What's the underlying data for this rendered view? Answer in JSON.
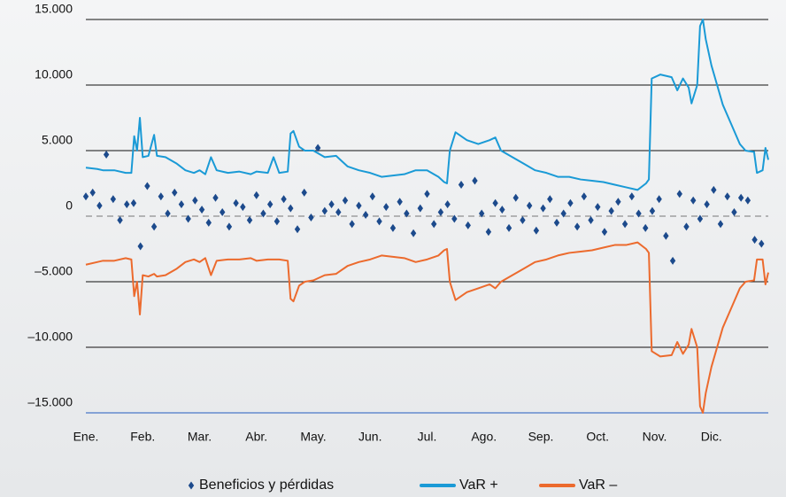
{
  "chart_data": {
    "type": "scatter-line",
    "xlim": [
      0,
      12
    ],
    "xticks": [
      {
        "value": 0,
        "label": "Ene."
      },
      {
        "value": 1,
        "label": "Feb."
      },
      {
        "value": 2,
        "label": "Mar."
      },
      {
        "value": 3,
        "label": "Abr."
      },
      {
        "value": 4,
        "label": "May."
      },
      {
        "value": 5,
        "label": "Jun."
      },
      {
        "value": 6,
        "label": "Jul."
      },
      {
        "value": 7,
        "label": "Ago."
      },
      {
        "value": 8,
        "label": "Sep."
      },
      {
        "value": 9,
        "label": "Oct."
      },
      {
        "value": 10,
        "label": "Nov."
      },
      {
        "value": 11,
        "label": "Dic."
      }
    ],
    "ylim": [
      -15000,
      15000
    ],
    "yticks": [
      {
        "value": 15000,
        "label": "15.000"
      },
      {
        "value": 10000,
        "label": "10.000"
      },
      {
        "value": 5000,
        "label": "5.000"
      },
      0,
      {
        "value": -5000,
        "label": "–5.000"
      },
      {
        "value": -10000,
        "label": "–10.000"
      },
      {
        "value": -15000,
        "label": "–15.000"
      }
    ],
    "grid": true,
    "legend": "bottom",
    "series": [
      {
        "name": "Beneficios y pérdidas",
        "type": "scatter",
        "color": "#1c4a8c",
        "x": [
          0,
          0.12,
          0.24,
          0.36,
          0.48,
          0.6,
          0.72,
          0.84,
          0.96,
          1.08,
          1.2,
          1.32,
          1.44,
          1.56,
          1.68,
          1.8,
          1.92,
          2.04,
          2.16,
          2.28,
          2.4,
          2.52,
          2.64,
          2.76,
          2.88,
          3,
          3.12,
          3.24,
          3.36,
          3.48,
          3.6,
          3.72,
          3.84,
          3.96,
          4.08,
          4.2,
          4.32,
          4.44,
          4.56,
          4.68,
          4.8,
          4.92,
          5.04,
          5.16,
          5.28,
          5.4,
          5.52,
          5.64,
          5.76,
          5.88,
          6,
          6.12,
          6.24,
          6.36,
          6.48,
          6.6,
          6.72,
          6.84,
          6.96,
          7.08,
          7.2,
          7.32,
          7.44,
          7.56,
          7.68,
          7.8,
          7.92,
          8.04,
          8.16,
          8.28,
          8.4,
          8.52,
          8.64,
          8.76,
          8.88,
          9,
          9.12,
          9.24,
          9.36,
          9.48,
          9.6,
          9.72,
          9.84,
          9.96,
          10.08,
          10.2,
          10.32,
          10.44,
          10.56,
          10.68,
          10.8,
          10.92,
          11.04,
          11.16,
          11.28,
          11.4,
          11.52,
          11.64,
          11.76,
          11.88
        ],
        "values": [
          1500,
          1800,
          800,
          4700,
          1300,
          -300,
          900,
          1000,
          -2300,
          2300,
          -800,
          1500,
          200,
          1800,
          900,
          -200,
          1200,
          500,
          -500,
          1400,
          300,
          -800,
          1000,
          700,
          -300,
          1600,
          200,
          900,
          -400,
          1300,
          600,
          -1000,
          1800,
          -100,
          5200,
          400,
          900,
          300,
          1200,
          -600,
          800,
          100,
          1500,
          -400,
          700,
          -900,
          1100,
          200,
          -1300,
          600,
          1700,
          -600,
          300,
          900,
          -200,
          2400,
          -700,
          2700,
          200,
          -1200,
          1000,
          500,
          -900,
          1400,
          -300,
          800,
          -1100,
          600,
          1300,
          -500,
          200,
          1000,
          -800,
          1500,
          -300,
          700,
          -1200,
          400,
          1100,
          -600,
          1500,
          200,
          -900,
          400,
          1300,
          -1500,
          -3400,
          1700,
          -800,
          1200,
          -200,
          900,
          2000,
          -600,
          1500,
          300,
          1400,
          1200,
          -1800,
          -2100
        ]
      },
      {
        "name": "VaR +",
        "type": "line",
        "color": "#1a9ad6",
        "x": [
          0,
          0.2,
          0.3,
          0.5,
          0.7,
          0.8,
          0.85,
          0.9,
          0.95,
          1.0,
          1.1,
          1.2,
          1.25,
          1.4,
          1.6,
          1.75,
          1.9,
          2.0,
          2.1,
          2.2,
          2.3,
          2.5,
          2.7,
          2.9,
          3.0,
          3.2,
          3.3,
          3.4,
          3.55,
          3.6,
          3.65,
          3.75,
          3.85,
          4.0,
          4.2,
          4.4,
          4.6,
          4.8,
          5.0,
          5.2,
          5.4,
          5.6,
          5.8,
          6.0,
          6.2,
          6.3,
          6.35,
          6.4,
          6.5,
          6.7,
          6.9,
          7.1,
          7.2,
          7.3,
          7.5,
          7.7,
          7.9,
          8.1,
          8.3,
          8.5,
          8.7,
          8.9,
          9.1,
          9.3,
          9.5,
          9.7,
          9.85,
          9.9,
          9.95,
          10.1,
          10.3,
          10.4,
          10.5,
          10.6,
          10.65,
          10.75,
          10.8,
          10.85,
          10.9,
          11.0,
          11.1,
          11.2,
          11.35,
          11.5,
          11.6,
          11.75,
          11.8,
          11.9,
          11.95,
          12.0
        ],
        "values": [
          3700,
          3600,
          3500,
          3500,
          3300,
          3300,
          6100,
          5000,
          7500,
          4500,
          4600,
          6200,
          4600,
          4500,
          4000,
          3500,
          3300,
          3500,
          3200,
          4500,
          3500,
          3300,
          3400,
          3200,
          3400,
          3300,
          4500,
          3300,
          3400,
          6300,
          6500,
          5300,
          5000,
          5000,
          4500,
          4600,
          3800,
          3500,
          3300,
          3000,
          3100,
          3200,
          3500,
          3500,
          3000,
          2600,
          2500,
          5000,
          6400,
          5800,
          5500,
          5800,
          6000,
          5000,
          4500,
          4000,
          3500,
          3300,
          3000,
          3000,
          2800,
          2700,
          2600,
          2400,
          2200,
          2000,
          2500,
          2800,
          10500,
          10800,
          10600,
          9600,
          10500,
          9800,
          8600,
          10000,
          14500,
          15000,
          13500,
          11500,
          10000,
          8500,
          7000,
          5500,
          5000,
          4900,
          3300,
          3500,
          5200,
          4300
        ]
      },
      {
        "name": "VaR –",
        "type": "line",
        "color": "#ec6a2d",
        "x": [
          0,
          0.2,
          0.3,
          0.5,
          0.7,
          0.8,
          0.85,
          0.9,
          0.95,
          1.0,
          1.1,
          1.2,
          1.25,
          1.4,
          1.6,
          1.75,
          1.9,
          2.0,
          2.1,
          2.2,
          2.3,
          2.5,
          2.7,
          2.9,
          3.0,
          3.2,
          3.3,
          3.4,
          3.55,
          3.6,
          3.65,
          3.75,
          3.85,
          4.0,
          4.2,
          4.4,
          4.6,
          4.8,
          5.0,
          5.2,
          5.4,
          5.6,
          5.8,
          6.0,
          6.2,
          6.3,
          6.35,
          6.4,
          6.5,
          6.7,
          6.9,
          7.1,
          7.2,
          7.3,
          7.5,
          7.7,
          7.9,
          8.1,
          8.3,
          8.5,
          8.7,
          8.9,
          9.1,
          9.3,
          9.5,
          9.7,
          9.85,
          9.9,
          9.95,
          10.1,
          10.3,
          10.4,
          10.5,
          10.6,
          10.65,
          10.75,
          10.8,
          10.85,
          10.9,
          11.0,
          11.1,
          11.2,
          11.35,
          11.5,
          11.6,
          11.75,
          11.8,
          11.9,
          11.95,
          12.0
        ],
        "values": [
          -3700,
          -3500,
          -3400,
          -3400,
          -3200,
          -3300,
          -6100,
          -5000,
          -7500,
          -4500,
          -4600,
          -4400,
          -4600,
          -4500,
          -4000,
          -3500,
          -3300,
          -3500,
          -3200,
          -4500,
          -3400,
          -3300,
          -3300,
          -3200,
          -3400,
          -3300,
          -3300,
          -3300,
          -3400,
          -6300,
          -6500,
          -5300,
          -5000,
          -4900,
          -4500,
          -4400,
          -3800,
          -3500,
          -3300,
          -3000,
          -3100,
          -3200,
          -3500,
          -3300,
          -3000,
          -2600,
          -2500,
          -5000,
          -6400,
          -5800,
          -5500,
          -5200,
          -5500,
          -5000,
          -4500,
          -4000,
          -3500,
          -3300,
          -3000,
          -2800,
          -2700,
          -2600,
          -2400,
          -2200,
          -2200,
          -2000,
          -2500,
          -2800,
          -10300,
          -10700,
          -10600,
          -9600,
          -10500,
          -9800,
          -8600,
          -10000,
          -14500,
          -15000,
          -13500,
          -11500,
          -10000,
          -8500,
          -7000,
          -5500,
          -5000,
          -4900,
          -3300,
          -3300,
          -5200,
          -4300
        ]
      }
    ]
  }
}
